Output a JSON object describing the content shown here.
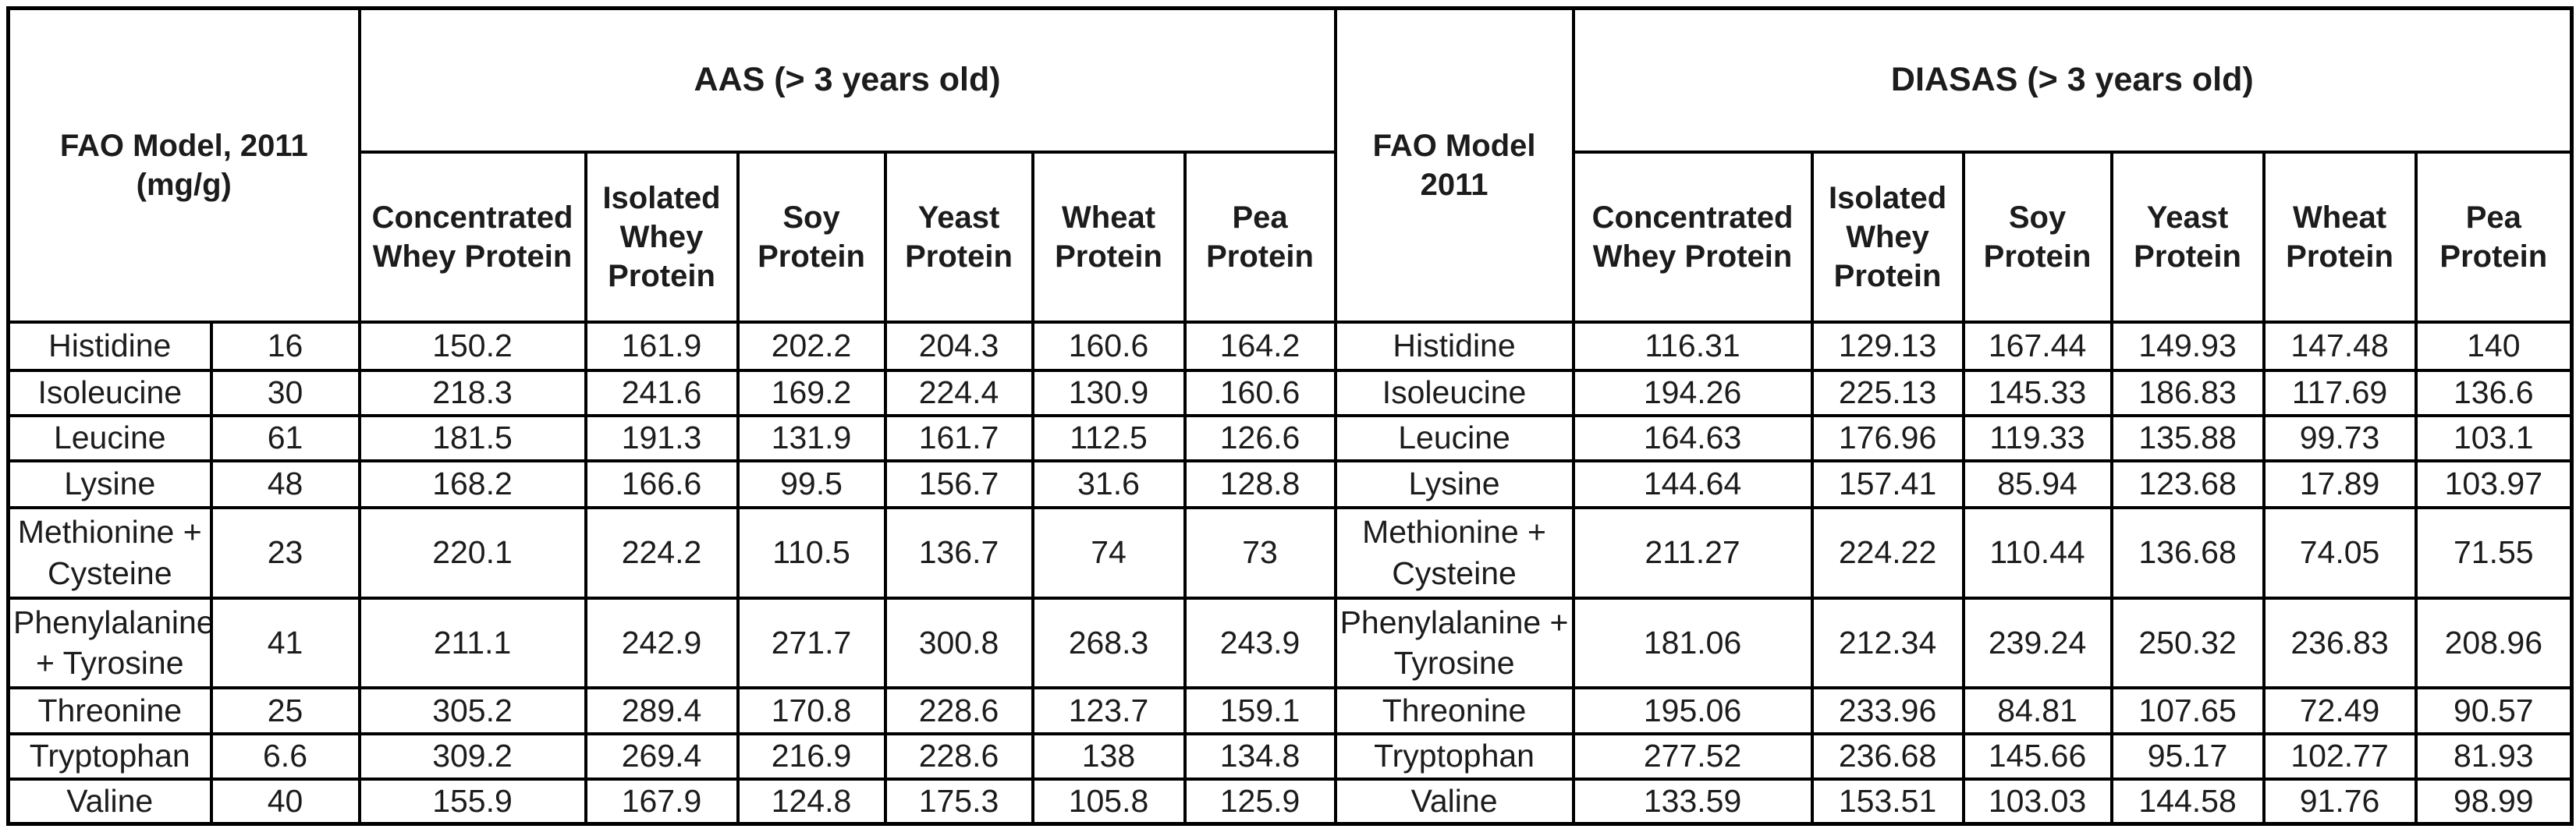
{
  "chart_data": {
    "type": "table",
    "corner_header": {
      "line1": "FAO Model, 2011",
      "line2": "(mg/g)"
    },
    "mid_header": {
      "line1": "FAO Model",
      "line2": "2011"
    },
    "group_headers": {
      "aas": "AAS (> 3 years old)",
      "diasas": "DIASAS (> 3 years old)"
    },
    "protein_columns": [
      "Concentrated Whey Protein",
      "Isolated Whey Protein",
      "Soy Protein",
      "Yeast Protein",
      "Wheat Protein",
      "Pea Protein"
    ],
    "rows": [
      {
        "amino_acid": "Histidine",
        "fao_2011": "16",
        "aas": [
          150.2,
          161.9,
          202.2,
          204.3,
          160.6,
          164.2
        ],
        "diasas": [
          116.31,
          129.13,
          167.44,
          149.93,
          147.48,
          140
        ]
      },
      {
        "amino_acid": "Isoleucine",
        "fao_2011": "30",
        "aas": [
          218.3,
          241.6,
          169.2,
          224.4,
          130.9,
          160.6
        ],
        "diasas": [
          194.26,
          225.13,
          145.33,
          186.83,
          117.69,
          136.6
        ]
      },
      {
        "amino_acid": "Leucine",
        "fao_2011": "61",
        "aas": [
          181.5,
          191.3,
          131.9,
          161.7,
          112.5,
          126.6
        ],
        "diasas": [
          164.63,
          176.96,
          119.33,
          135.88,
          99.73,
          103.1
        ]
      },
      {
        "amino_acid": "Lysine",
        "fao_2011": "48",
        "aas": [
          168.2,
          166.6,
          99.5,
          156.7,
          31.6,
          128.8
        ],
        "diasas": [
          144.64,
          157.41,
          85.94,
          123.68,
          17.89,
          103.97
        ]
      },
      {
        "amino_acid": "Methionine + Cysteine",
        "fao_2011": "23",
        "aas": [
          220.1,
          224.2,
          110.5,
          136.7,
          74,
          73
        ],
        "diasas": [
          211.27,
          224.22,
          110.44,
          136.68,
          74.05,
          71.55
        ]
      },
      {
        "amino_acid": "Phenylalanine + Tyrosine",
        "fao_2011": "41",
        "aas": [
          211.1,
          242.9,
          271.7,
          300.8,
          268.3,
          243.9
        ],
        "diasas": [
          181.06,
          212.34,
          239.24,
          250.32,
          236.83,
          208.96
        ]
      },
      {
        "amino_acid": "Threonine",
        "fao_2011": "25",
        "aas": [
          305.2,
          289.4,
          170.8,
          228.6,
          123.7,
          159.1
        ],
        "diasas": [
          195.06,
          233.96,
          84.81,
          107.65,
          72.49,
          90.57
        ]
      },
      {
        "amino_acid": "Tryptophan",
        "fao_2011": "6.6",
        "aas": [
          309.2,
          269.4,
          216.9,
          228.6,
          138,
          134.8
        ],
        "diasas": [
          277.52,
          236.68,
          145.66,
          95.17,
          102.77,
          81.93
        ]
      },
      {
        "amino_acid": "Valine",
        "fao_2011": "40",
        "aas": [
          155.9,
          167.9,
          124.8,
          175.3,
          105.8,
          125.9
        ],
        "diasas": [
          133.59,
          153.51,
          103.03,
          144.58,
          91.76,
          98.99
        ]
      }
    ],
    "colors": {
      "border": "#000000",
      "text": "#1c1c1c",
      "background": "#ffffff"
    }
  }
}
